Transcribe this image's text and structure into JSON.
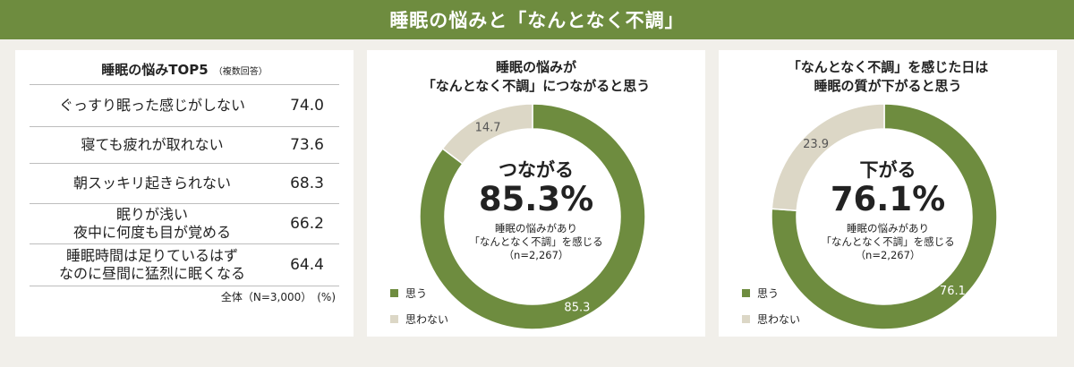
{
  "banner": {
    "title": "睡眠の悩みと「なんとなく不調」"
  },
  "colors": {
    "accent": "#6e8c3f",
    "secondary": "#dcd7c6",
    "background": "#f1efea"
  },
  "top5": {
    "title": "睡眠の悩みTOP5",
    "subtitle": "（複数回答）",
    "items": [
      {
        "line1": "ぐっすり眠った感じがしない",
        "line2": "",
        "value": "74.0"
      },
      {
        "line1": "寝ても疲れが取れない",
        "line2": "",
        "value": "73.6"
      },
      {
        "line1": "朝スッキリ起きられない",
        "line2": "",
        "value": "68.3"
      },
      {
        "line1": "眠りが浅い",
        "line2": "夜中に何度も目が覚める",
        "value": "66.2"
      },
      {
        "line1": "睡眠時間は足りているはず",
        "line2": "なのに昼間に猛烈に眠くなる",
        "value": "64.4"
      }
    ],
    "footnote": "全体（N=3,000）　(%)"
  },
  "chart_data": [
    {
      "type": "pie",
      "title": "睡眠の悩みが\n「なんとなく不調」につながると思う",
      "series": [
        {
          "name": "思う",
          "value": 85.3
        },
        {
          "name": "思わない",
          "value": 14.7
        }
      ],
      "center_heading": "つながる",
      "center_value": "85.3%",
      "center_note": "睡眠の悩みがあり\n「なんとなく不調」を感じる\n（n=2,267）",
      "legend": "bottom-left"
    },
    {
      "type": "pie",
      "title": "「なんとなく不調」を感じた日は\n睡眠の質が下がると思う",
      "series": [
        {
          "name": "思う",
          "value": 76.1
        },
        {
          "name": "思わない",
          "value": 23.9
        }
      ],
      "center_heading": "下がる",
      "center_value": "76.1%",
      "center_note": "睡眠の悩みがあり\n「なんとなく不調」を感じる\n（n=2,267）",
      "legend": "bottom-left"
    }
  ]
}
